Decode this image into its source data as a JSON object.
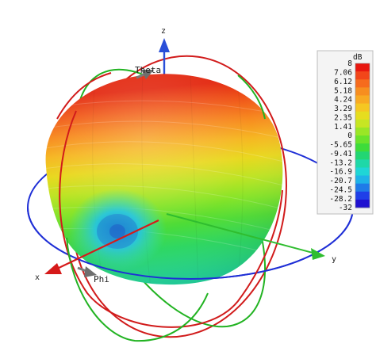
{
  "axes": {
    "z": "z",
    "y": "y",
    "x": "x",
    "theta": "Theta",
    "phi": "Phi"
  },
  "colorbar": {
    "unit": "dB",
    "ticks": [
      "8",
      "7.06",
      "6.12",
      "5.18",
      "4.24",
      "3.29",
      "2.35",
      "1.41",
      "0",
      "-5.65",
      "-9.41",
      "-13.2",
      "-16.9",
      "-20.7",
      "-24.5",
      "-28.2",
      "-32"
    ],
    "max": 8,
    "min": -32,
    "colors": [
      "#e8170f",
      "#f2461a",
      "#f66b1d",
      "#f78e1f",
      "#f8aa22",
      "#f5c722",
      "#e6dd1f",
      "#c7e623",
      "#9ae626",
      "#6ae32b",
      "#3ddc3a",
      "#22d673",
      "#1ed8a8",
      "#1fd6d6",
      "#1fb3e8",
      "#1f7be8",
      "#1f3fe8",
      "#1f10d0"
    ]
  },
  "colors": {
    "ring_red": "#d11b1b",
    "ring_green": "#22b322",
    "ring_blue": "#1f2fd6",
    "axis_z": "#2a4fd8",
    "axis_y": "#2fbd2f",
    "axis_x": "#d61a1a",
    "axis_phi": "#7a7a7a"
  }
}
